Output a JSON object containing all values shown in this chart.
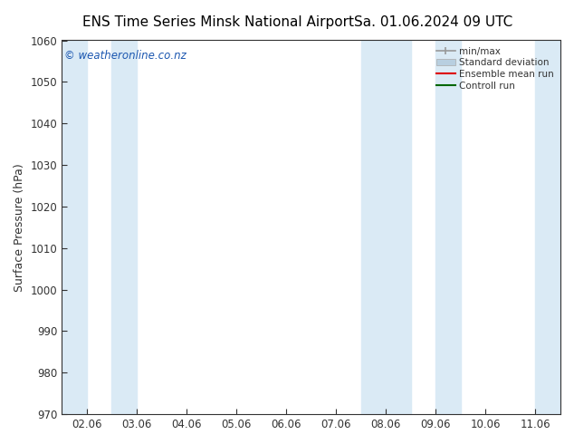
{
  "title_left": "ENS Time Series Minsk National Airport",
  "title_right": "Sa. 01.06.2024 09 UTC",
  "ylabel": "Surface Pressure (hPa)",
  "ylim": [
    970,
    1060
  ],
  "yticks": [
    970,
    980,
    990,
    1000,
    1010,
    1020,
    1030,
    1040,
    1050,
    1060
  ],
  "xtick_labels": [
    "02.06",
    "03.06",
    "04.06",
    "05.06",
    "06.06",
    "07.06",
    "08.06",
    "09.06",
    "10.06",
    "11.06"
  ],
  "xtick_positions": [
    0,
    1,
    2,
    3,
    4,
    5,
    6,
    7,
    8,
    9
  ],
  "xlim": [
    -0.5,
    9.5
  ],
  "shaded_bands": [
    {
      "x_start": -0.5,
      "x_end": 0.0,
      "color": "#daeaf5"
    },
    {
      "x_start": 0.5,
      "x_end": 1.0,
      "color": "#daeaf5"
    },
    {
      "x_start": 5.5,
      "x_end": 6.5,
      "color": "#daeaf5"
    },
    {
      "x_start": 7.0,
      "x_end": 7.5,
      "color": "#daeaf5"
    },
    {
      "x_start": 9.0,
      "x_end": 9.5,
      "color": "#daeaf5"
    }
  ],
  "watermark": "© weatheronline.co.nz",
  "watermark_color": "#1a56b0",
  "legend_labels": [
    "min/max",
    "Standard deviation",
    "Ensemble mean run",
    "Controll run"
  ],
  "legend_colors": [
    "#999999",
    "#b8cfe0",
    "#dd0000",
    "#006600"
  ],
  "bg_color": "#ffffff",
  "axes_bg_color": "#ffffff",
  "tick_color": "#333333",
  "spine_color": "#333333",
  "title_fontsize": 11,
  "label_fontsize": 9,
  "tick_fontsize": 8.5
}
